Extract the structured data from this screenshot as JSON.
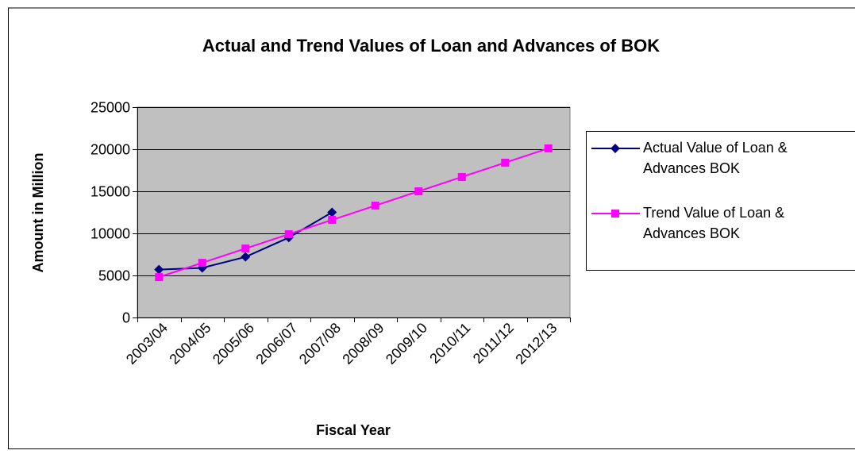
{
  "chart_data": {
    "type": "line",
    "title": "Actual and Trend Values of Loan and Advances of BOK",
    "x_label": "Fiscal Year",
    "y_label": "Amount in Million",
    "categories": [
      "2003/04",
      "2004/05",
      "2005/06",
      "2006/07",
      "2007/08",
      "2008/09",
      "2009/10",
      "2010/11",
      "2011/12",
      "2012/13"
    ],
    "series": [
      {
        "name": "Actual Value of Loan & Advances BOK",
        "color": "#000080",
        "marker": "diamond",
        "values": [
          5700,
          5900,
          7200,
          9500,
          12500,
          null,
          null,
          null,
          null,
          null
        ]
      },
      {
        "name": "Trend Value of Loan & Advances BOK",
        "color": "#ff00ff",
        "marker": "square",
        "values": [
          4800,
          6500,
          8200,
          9900,
          11600,
          13300,
          15000,
          16700,
          18400,
          20100
        ]
      }
    ],
    "ylim": [
      0,
      25000
    ],
    "yticks": [
      0,
      5000,
      10000,
      15000,
      20000,
      25000
    ],
    "grid": true,
    "legend": "right"
  }
}
